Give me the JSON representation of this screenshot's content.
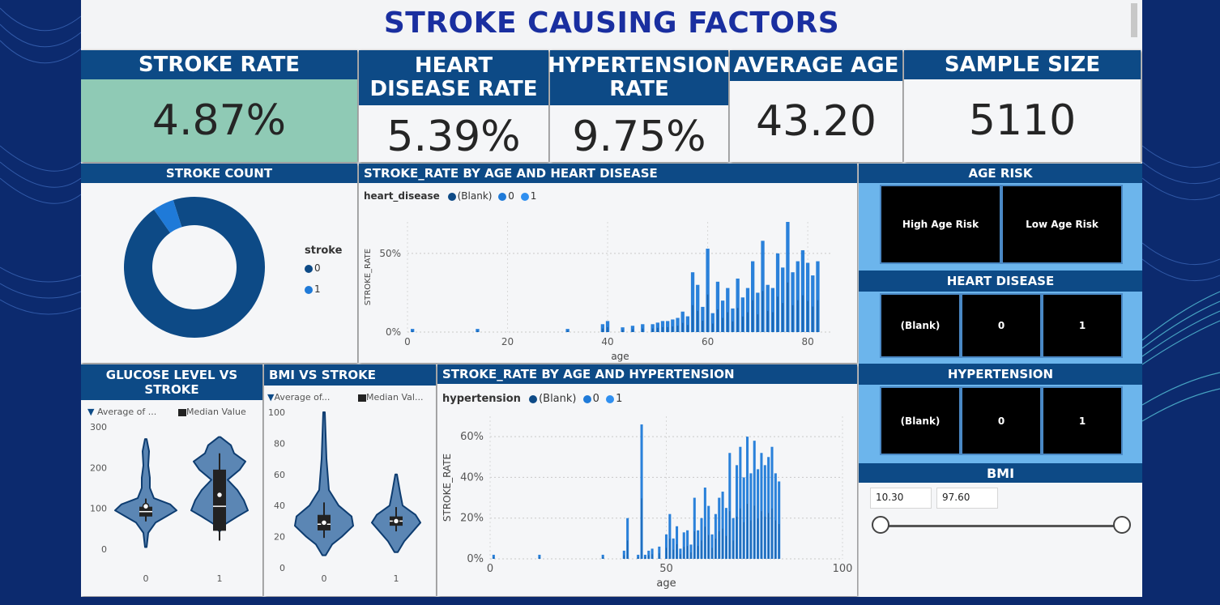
{
  "title": "STROKE CAUSING FACTORS",
  "kpis": [
    {
      "label": "STROKE RATE",
      "value": "4.87%"
    },
    {
      "label": "HEART DISEASE RATE",
      "value": "5.39%"
    },
    {
      "label": "HYPERTENSION RATE",
      "value": "9.75%"
    },
    {
      "label": "AVERAGE AGE",
      "value": "43.20"
    },
    {
      "label": "SAMPLE SIZE",
      "value": "5110"
    }
  ],
  "colors": {
    "header": "#0d4a86",
    "highlight": "#8fcab5",
    "series_blank": "#0d4a86",
    "series_0": "#1f7ad8",
    "series_1": "#2f8ff0"
  },
  "stroke_count": {
    "title": "STROKE COUNT",
    "legend_title": "stroke",
    "legend": [
      "0",
      "1"
    ],
    "chart_data": {
      "type": "pie",
      "categories": [
        "0",
        "1"
      ],
      "values": [
        4861,
        249
      ]
    }
  },
  "heart_chart": {
    "title": "STROKE_RATE BY AGE AND HEART DISEASE",
    "legend_title": "heart_disease",
    "legend": [
      "(Blank)",
      "0",
      "1"
    ],
    "ylabel": "STROKE_RATE",
    "xlabel": "age",
    "xticks": [
      "0",
      "20",
      "40",
      "60",
      "80"
    ],
    "yticks": [
      "0%",
      "50%"
    ],
    "chart_data": {
      "type": "area",
      "xlim": [
        0,
        85
      ],
      "ylim": [
        0,
        0.7
      ],
      "series": [
        {
          "name": "0",
          "x": [
            1,
            14,
            32,
            39,
            40,
            43,
            45,
            47,
            49,
            50,
            51,
            52,
            53,
            54,
            55,
            56,
            57,
            58,
            59,
            60,
            61,
            62,
            63,
            64,
            65,
            66,
            67,
            68,
            69,
            70,
            71,
            72,
            73,
            74,
            75,
            76,
            77,
            78,
            79,
            80,
            81,
            82
          ],
          "values": [
            0.02,
            0.02,
            0.02,
            0.05,
            0.07,
            0.03,
            0.04,
            0.05,
            0.05,
            0.06,
            0.07,
            0.07,
            0.08,
            0.09,
            0.13,
            0.1,
            0.38,
            0.3,
            0.16,
            0.53,
            0.12,
            0.32,
            0.2,
            0.28,
            0.15,
            0.34,
            0.22,
            0.28,
            0.45,
            0.25,
            0.58,
            0.3,
            0.28,
            0.5,
            0.41,
            0.7,
            0.38,
            0.45,
            0.52,
            0.44,
            0.36,
            0.45
          ]
        }
      ]
    }
  },
  "glucose_chart": {
    "title": "GLUCOSE LEVEL VS STROKE",
    "legend": [
      "Average of ...",
      "Median Value"
    ],
    "yticks": [
      "300",
      "200",
      "100",
      "0"
    ],
    "xticks": [
      "0",
      "1"
    ],
    "chart_data": {
      "type": "violin",
      "categories": [
        "0",
        "1"
      ],
      "ylim": [
        0,
        300
      ],
      "median": [
        92,
        105
      ],
      "average": [
        105,
        133
      ]
    }
  },
  "bmi_chart": {
    "title": "BMI VS STROKE",
    "legend": [
      "Average of...",
      "Median Val..."
    ],
    "yticks": [
      "100",
      "80",
      "60",
      "40",
      "20",
      "0"
    ],
    "xticks": [
      "0",
      "1"
    ],
    "chart_data": {
      "type": "violin",
      "categories": [
        "0",
        "1"
      ],
      "ylim": [
        0,
        100
      ],
      "median": [
        28,
        30
      ],
      "average": [
        29,
        30
      ]
    }
  },
  "hyp_chart": {
    "title": "STROKE_RATE BY AGE AND HYPERTENSION",
    "legend_title": "hypertension",
    "legend": [
      "(Blank)",
      "0",
      "1"
    ],
    "ylabel": "STROKE_RATE",
    "xlabel": "age",
    "xticks": [
      "0",
      "50",
      "100"
    ],
    "yticks": [
      "0%",
      "20%",
      "40%",
      "60%"
    ],
    "chart_data": {
      "type": "area",
      "xlim": [
        0,
        100
      ],
      "ylim": [
        0,
        0.7
      ],
      "series": [
        {
          "name": "0",
          "x": [
            1,
            14,
            32,
            38,
            39,
            42,
            43,
            44,
            45,
            46,
            48,
            50,
            51,
            52,
            53,
            54,
            55,
            56,
            57,
            58,
            59,
            60,
            61,
            62,
            63,
            64,
            65,
            66,
            67,
            68,
            69,
            70,
            71,
            72,
            73,
            74,
            75,
            76,
            77,
            78,
            79,
            80,
            81,
            82
          ],
          "values": [
            0.02,
            0.02,
            0.02,
            0.04,
            0.2,
            0.02,
            0.66,
            0.02,
            0.04,
            0.05,
            0.06,
            0.12,
            0.22,
            0.1,
            0.16,
            0.05,
            0.13,
            0.14,
            0.07,
            0.3,
            0.14,
            0.2,
            0.35,
            0.26,
            0.12,
            0.22,
            0.3,
            0.33,
            0.25,
            0.52,
            0.2,
            0.46,
            0.55,
            0.4,
            0.6,
            0.42,
            0.58,
            0.44,
            0.52,
            0.46,
            0.5,
            0.55,
            0.42,
            0.38
          ]
        }
      ]
    }
  },
  "age_risk": {
    "title": "AGE RISK",
    "options": [
      "High Age Risk",
      "Low Age Risk"
    ]
  },
  "heart_slicer": {
    "title": "HEART DISEASE",
    "options": [
      "(Blank)",
      "0",
      "1"
    ]
  },
  "hyp_slicer": {
    "title": "HYPERTENSION",
    "options": [
      "(Blank)",
      "0",
      "1"
    ]
  },
  "bmi_slicer": {
    "title": "BMI",
    "min": "10.30",
    "max": "97.60"
  }
}
